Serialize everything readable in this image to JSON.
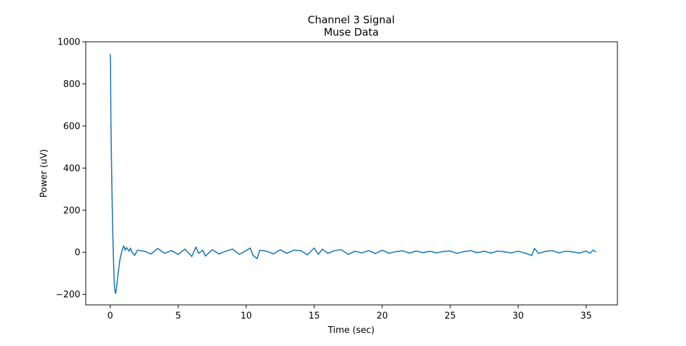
{
  "chart_data": {
    "type": "line",
    "title": "Channel 3 Signal",
    "subtitle": "Muse Data",
    "xlabel": "Time (sec)",
    "ylabel": "Power (uV)",
    "xlim": [
      -1.8,
      37.3
    ],
    "ylim": [
      -250,
      1000
    ],
    "xticks": [
      0,
      5,
      10,
      15,
      20,
      25,
      30,
      35
    ],
    "xtick_labels": [
      "0",
      "5",
      "10",
      "15",
      "20",
      "25",
      "30",
      "35"
    ],
    "yticks": [
      -200,
      0,
      200,
      400,
      600,
      800,
      1000
    ],
    "ytick_labels": [
      "−200",
      "0",
      "200",
      "400",
      "600",
      "800",
      "1000"
    ],
    "grid": false,
    "legend": "none",
    "series_color": "#1f77b4",
    "series": [
      {
        "x": [
          0.0,
          0.02,
          0.05,
          0.08,
          0.1,
          0.15,
          0.2,
          0.25,
          0.3,
          0.35,
          0.4,
          0.5,
          0.6,
          0.7,
          0.8,
          0.9,
          1.0,
          1.1,
          1.2,
          1.4,
          1.5,
          1.6,
          1.8,
          2.0,
          2.5,
          3.0,
          3.5,
          4.0,
          4.5,
          5.0,
          5.5,
          6.0,
          6.3,
          6.5,
          6.8,
          7.0,
          7.5,
          8.0,
          8.5,
          9.0,
          9.5,
          10.0,
          10.3,
          10.5,
          10.8,
          11.0,
          11.5,
          12.0,
          12.5,
          13.0,
          13.5,
          14.0,
          14.5,
          15.0,
          15.3,
          15.6,
          16.0,
          16.5,
          17.0,
          17.5,
          18.0,
          18.5,
          19.0,
          19.5,
          20.0,
          20.5,
          21.0,
          21.5,
          22.0,
          22.5,
          23.0,
          23.5,
          24.0,
          24.5,
          25.0,
          25.5,
          26.0,
          26.5,
          27.0,
          27.5,
          28.0,
          28.5,
          29.0,
          29.5,
          30.0,
          30.5,
          31.0,
          31.2,
          31.5,
          32.0,
          32.5,
          33.0,
          33.5,
          34.0,
          34.5,
          35.0,
          35.3,
          35.5,
          35.7
        ],
        "y": [
          940,
          900,
          620,
          480,
          400,
          210,
          60,
          -60,
          -150,
          -185,
          -195,
          -150,
          -90,
          -40,
          -10,
          15,
          30,
          10,
          22,
          5,
          20,
          0,
          -15,
          10,
          5,
          -8,
          18,
          -5,
          8,
          -10,
          15,
          -20,
          25,
          -5,
          10,
          -18,
          12,
          -8,
          5,
          15,
          -10,
          8,
          20,
          -15,
          -30,
          10,
          5,
          -8,
          12,
          -5,
          10,
          8,
          -12,
          20,
          -10,
          15,
          -5,
          8,
          12,
          -10,
          5,
          -3,
          8,
          -6,
          10,
          -5,
          3,
          7,
          -4,
          6,
          -2,
          5,
          -3,
          4,
          6,
          -5,
          3,
          8,
          -2,
          5,
          -4,
          6,
          2,
          -3,
          5,
          -4,
          -15,
          18,
          -5,
          4,
          8,
          -3,
          5,
          2,
          -4,
          6,
          -5,
          10,
          3
        ]
      }
    ]
  }
}
